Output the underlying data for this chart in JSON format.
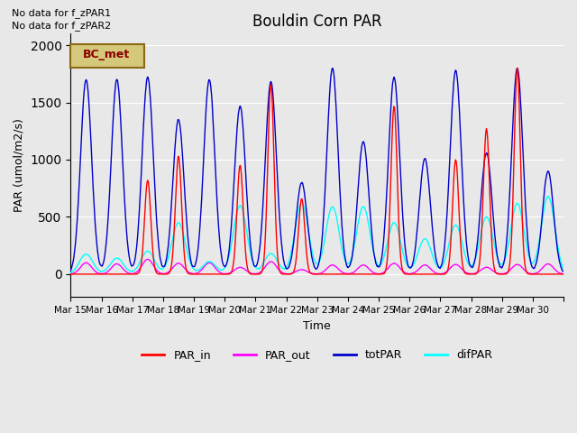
{
  "title": "Bouldin Corn PAR",
  "ylabel": "PAR (umol/m2/s)",
  "xlabel": "Time",
  "ylim": [
    -200,
    2100
  ],
  "plot_bg_color": "#e8e8e8",
  "no_data_text": [
    "No data for f_zPAR1",
    "No data for f_zPAR2"
  ],
  "legend_box_label": "BC_met",
  "legend_box_color": "#d4c87a",
  "legend_box_border": "#8B6914",
  "x_tick_labels": [
    "Mar 15",
    "Mar 16",
    "Mar 17",
    "Mar 18",
    "Mar 19",
    "Mar 20",
    "Mar 21",
    "Mar 22",
    "Mar 23",
    "Mar 24",
    "Mar 25",
    "Mar 26",
    "Mar 27",
    "Mar 28",
    "Mar 29",
    "Mar 30",
    ""
  ],
  "grid_color": "#ffffff",
  "line_colors": {
    "PAR_in": "#ff0000",
    "PAR_out": "#ff00ff",
    "totPAR": "#0000cc",
    "difPAR": "#00ffff"
  },
  "num_days": 16,
  "points_per_day": 48,
  "tot_peaks": [
    1700,
    1700,
    1720,
    1350,
    1700,
    1470,
    1680,
    800,
    1800,
    1160,
    1720,
    1010,
    1780,
    1060,
    1800,
    900
  ],
  "dif_peaks": [
    175,
    140,
    200,
    450,
    110,
    600,
    180,
    620,
    590,
    590,
    450,
    310,
    430,
    500,
    620,
    680
  ],
  "par_in_peaks": [
    0,
    0,
    820,
    1030,
    0,
    950,
    1660,
    660,
    0,
    0,
    1470,
    0,
    1000,
    1270,
    1800,
    0
  ],
  "par_out_peaks": [
    100,
    90,
    130,
    95,
    100,
    60,
    110,
    40,
    80,
    80,
    95,
    80,
    85,
    60,
    85,
    90
  ]
}
